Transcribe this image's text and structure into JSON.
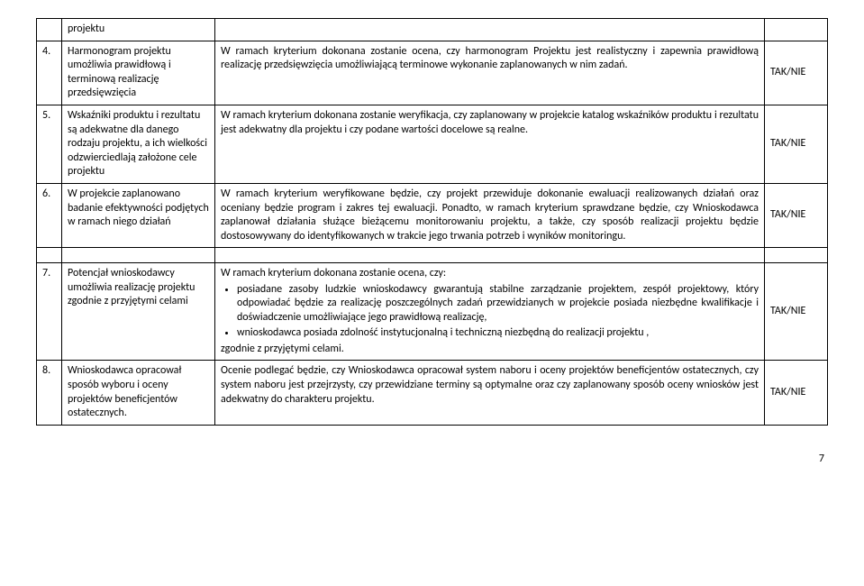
{
  "rows": [
    {
      "num": "",
      "title": "projektu",
      "desc_html": "",
      "tak": ""
    },
    {
      "num": "4.",
      "title": "Harmonogram projektu umożliwia prawidłową i terminową realizację przedsięwzięcia",
      "desc_html": "W ramach kryterium dokonana zostanie ocena, czy harmonogram Projektu jest realistyczny i zapewnia prawidłową realizację przedsięwzięcia umożliwiającą terminowe wykonanie zaplanowanych w nim zadań.",
      "tak": "TAK/NIE"
    },
    {
      "num": "5.",
      "title": "Wskaźniki produktu i rezultatu są adekwatne dla danego rodzaju projektu, a ich wielkości odzwierciedlają założone cele projektu",
      "desc_html": "W ramach kryterium  dokonana zostanie  weryfikacja, czy zaplanowany w projekcie katalog wskaźników produktu i rezultatu jest adekwatny dla projektu i czy podane wartości docelowe są realne.",
      "tak": "TAK/NIE"
    },
    {
      "num": "6.",
      "title": "W projekcie zaplanowano badanie efektywności podjętych w ramach niego działań",
      "desc_html": "W ramach kryterium weryfikowane będzie, czy projekt przewiduje dokonanie ewaluacji realizowanych działań oraz oceniany będzie program i zakres tej ewaluacji. Ponadto, w ramach kryterium sprawdzane będzie, czy Wnioskodawca zaplanował działania służące bieżącemu monitorowaniu projektu, a także, czy  sposób realizacji projektu będzie dostosowywany do identyfikowanych w trakcie jego trwania potrzeb i wyników monitoringu.",
      "tak": "TAK/NIE"
    },
    {
      "num": "7.",
      "title": "Potencjał wnioskodawcy umożliwia realizację projektu zgodnie z przyjętymi celami",
      "desc_html": "W ramach kryterium dokonana zostanie ocena, czy:<ul><li>posiadane zasoby ludzkie wnioskodawcy gwarantują stabilne zarządzanie projektem, zespół projektowy, który odpowiadać będzie za realizację poszczególnych zadań przewidzianych w projekcie posiada niezbędne kwalifikacje i doświadczenie umożliwiające jego prawidłową realizację,</li><li>wnioskodawca posiada zdolność instytucjonalną i techniczną niezbędną do realizacji projektu ,</li></ul>zgodnie z przyjętymi celami.",
      "tak": "TAK/NIE"
    },
    {
      "num": "8.",
      "title": "Wnioskodawca opracował sposób wyboru i oceny projektów beneficjentów ostatecznych.",
      "desc_html": "Ocenie podlegać będzie, czy Wnioskodawca opracował system naboru i oceny projektów beneficjentów ostatecznych, czy system naboru jest przejrzysty, czy przewidziane terminy są optymalne oraz czy zaplanowany sposób oceny wniosków jest adekwatny do charakteru projektu.",
      "tak": "TAK/NIE"
    }
  ],
  "spacerAfterIndex": 3,
  "pageNumber": "7"
}
